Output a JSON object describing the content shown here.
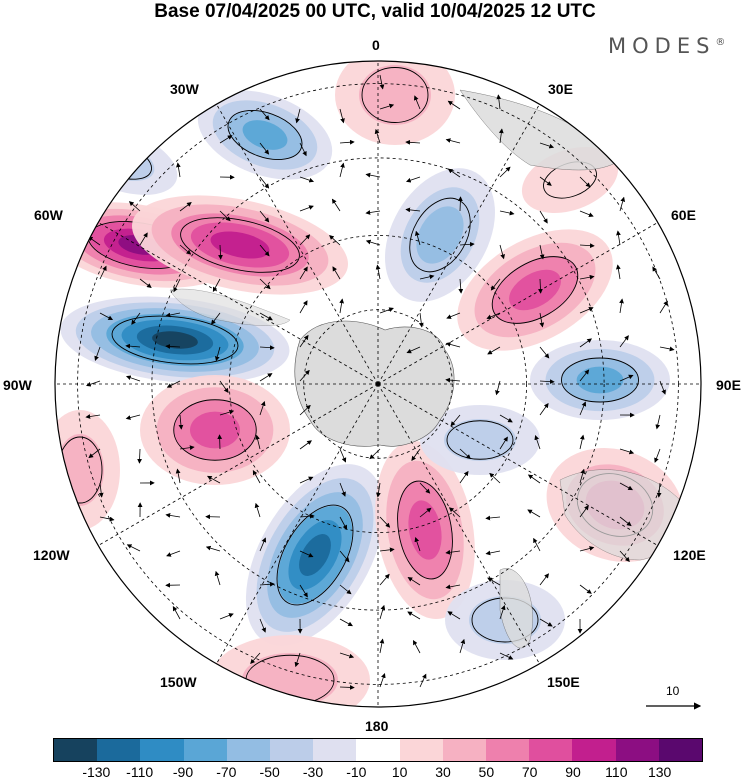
{
  "title": "Base 07/04/2025 00 UTC, valid 10/04/2025 12 UTC",
  "brand": "MODES",
  "brand_mark": "®",
  "longitude_labels": {
    "lon_0": "0",
    "lon_30e": "30E",
    "lon_60e": "60E",
    "lon_90e": "90E",
    "lon_120e": "120E",
    "lon_150e": "150E",
    "lon_180": "180",
    "lon_150w": "150W",
    "lon_120w": "120W",
    "lon_90w": "90W",
    "lon_60w": "60W",
    "lon_30w": "30W"
  },
  "reference_vector": {
    "label": "10"
  },
  "colorbar": {
    "colors": [
      "#16425e",
      "#1b6a9c",
      "#2f8cc4",
      "#5aa6d6",
      "#93bde3",
      "#bccde9",
      "#dfe0f0",
      "#ffffff",
      "#fbd6d8",
      "#f6b1c2",
      "#ee80ad",
      "#e04f9e",
      "#c21f8e",
      "#8c0e82",
      "#5a086e"
    ],
    "ticks": [
      "-130",
      "-110",
      "-90",
      "-70",
      "-50",
      "-30",
      "-10",
      "10",
      "30",
      "50",
      "70",
      "90",
      "110",
      "130"
    ]
  },
  "colors": {
    "land": "#dcdcdc",
    "ocean": "#ffffff",
    "graticule": "#000000"
  }
}
